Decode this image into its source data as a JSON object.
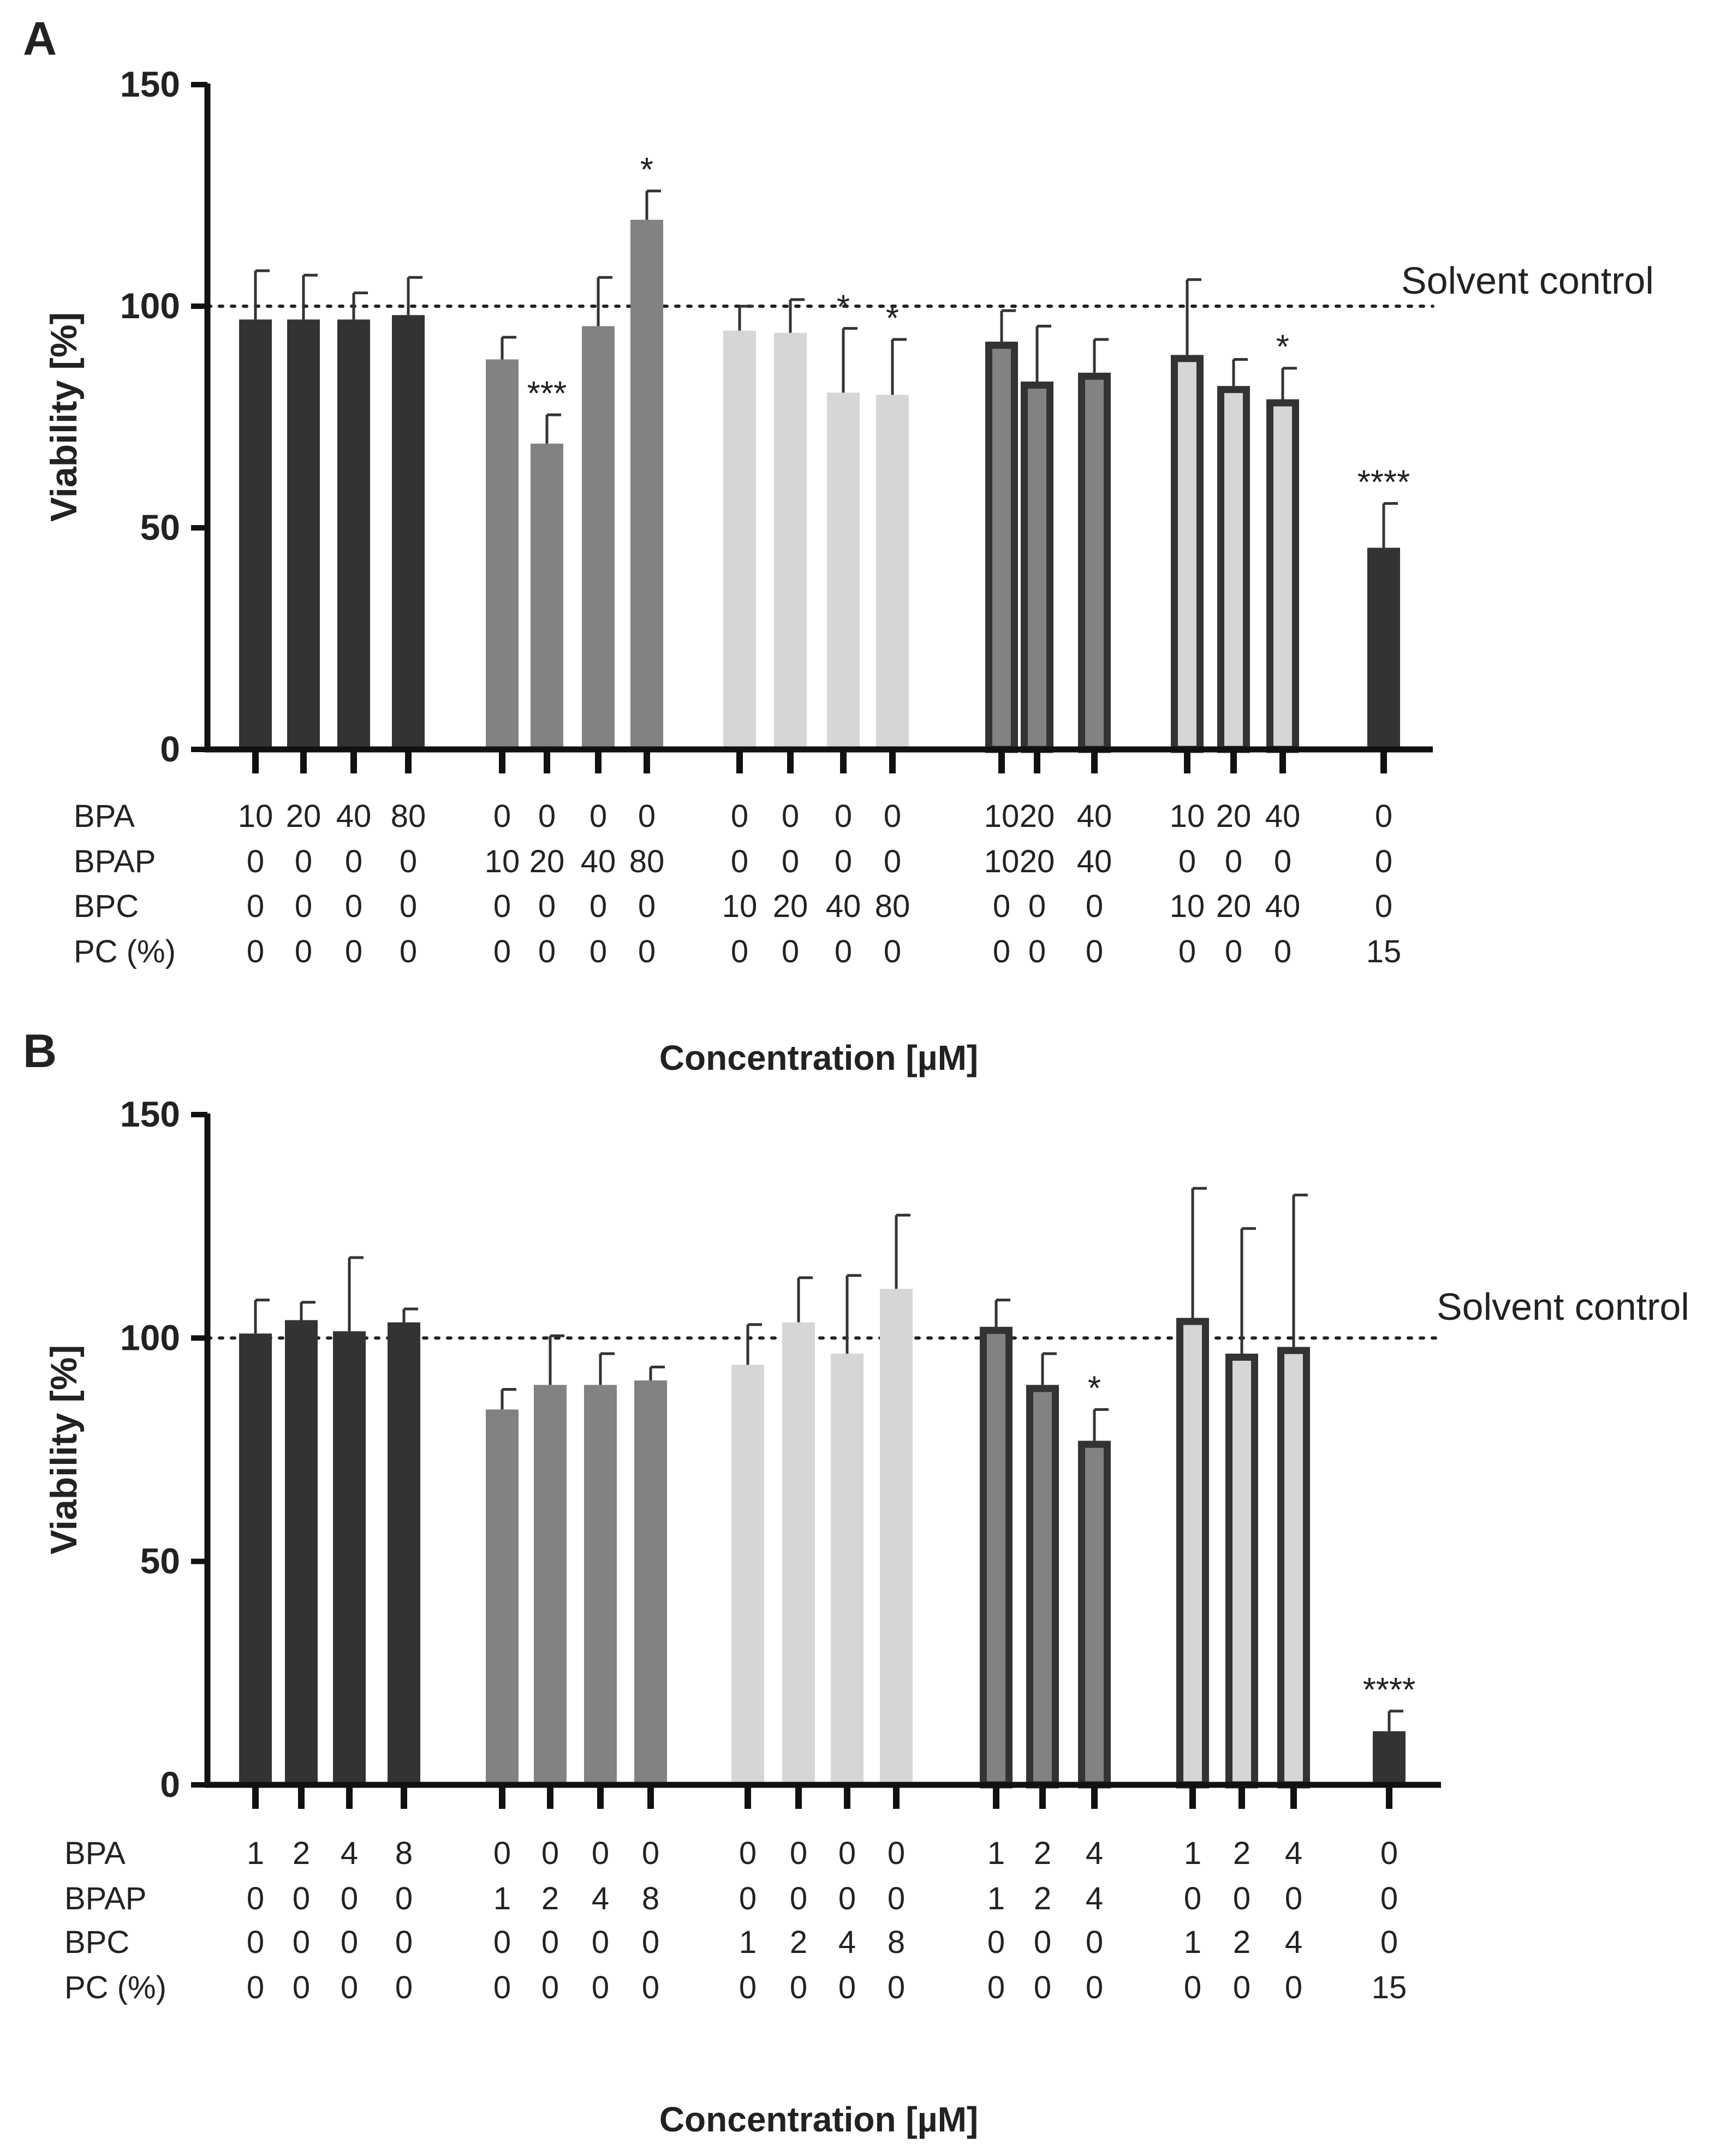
{
  "chart_data": [
    {
      "panel": "A",
      "type": "bar",
      "ylabel": "Viability [%]",
      "xlabel": "Concentration [µM]",
      "ylim": [
        0,
        150
      ],
      "yticks": [
        0,
        50,
        100,
        150
      ],
      "reference_line": {
        "value": 100,
        "label": "Solvent control",
        "style": "dotted"
      },
      "row_labels": [
        "BPA",
        "BPAP",
        "BPC",
        "PC (%)"
      ],
      "groups": [
        {
          "style": "dark",
          "bars": [
            {
              "value": 97,
              "error": 11,
              "sig": "",
              "conc": [
                "10",
                "0",
                "0",
                "0"
              ]
            },
            {
              "value": 97,
              "error": 10,
              "sig": "",
              "conc": [
                "20",
                "0",
                "0",
                "0"
              ]
            },
            {
              "value": 97,
              "error": 6,
              "sig": "",
              "conc": [
                "40",
                "0",
                "0",
                "0"
              ]
            },
            {
              "value": 98,
              "error": 8.5,
              "sig": "",
              "conc": [
                "80",
                "0",
                "0",
                "0"
              ]
            }
          ]
        },
        {
          "style": "mid",
          "bars": [
            {
              "value": 88,
              "error": 5,
              "sig": "",
              "conc": [
                "0",
                "10",
                "0",
                "0"
              ]
            },
            {
              "value": 69,
              "error": 6.5,
              "sig": "***",
              "conc": [
                "0",
                "20",
                "0",
                "0"
              ]
            },
            {
              "value": 95.5,
              "error": 11,
              "sig": "",
              "conc": [
                "0",
                "40",
                "0",
                "0"
              ]
            },
            {
              "value": 119.5,
              "error": 6.5,
              "sig": "*",
              "conc": [
                "0",
                "80",
                "0",
                "0"
              ]
            }
          ]
        },
        {
          "style": "light",
          "bars": [
            {
              "value": 94.5,
              "error": 5.5,
              "sig": "",
              "conc": [
                "0",
                "0",
                "10",
                "0"
              ]
            },
            {
              "value": 94,
              "error": 7.5,
              "sig": "",
              "conc": [
                "0",
                "0",
                "20",
                "0"
              ]
            },
            {
              "value": 80.5,
              "error": 14.5,
              "sig": "*",
              "conc": [
                "0",
                "0",
                "40",
                "0"
              ]
            },
            {
              "value": 80,
              "error": 12.5,
              "sig": "*",
              "conc": [
                "0",
                "0",
                "80",
                "0"
              ]
            }
          ]
        },
        {
          "style": "mid-outlined",
          "bars": [
            {
              "value": 92,
              "error": 7,
              "sig": "",
              "conc": [
                "10",
                "10",
                "0",
                "0"
              ]
            },
            {
              "value": 83,
              "error": 12.5,
              "sig": "",
              "conc": [
                "20",
                "20",
                "0",
                "0"
              ]
            },
            {
              "value": 85,
              "error": 7.5,
              "sig": "",
              "conc": [
                "40",
                "40",
                "0",
                "0"
              ]
            }
          ]
        },
        {
          "style": "light-outlined",
          "bars": [
            {
              "value": 89,
              "error": 17,
              "sig": "",
              "conc": [
                "10",
                "0",
                "10",
                "0"
              ]
            },
            {
              "value": 82,
              "error": 6,
              "sig": "",
              "conc": [
                "20",
                "0",
                "20",
                "0"
              ]
            },
            {
              "value": 79,
              "error": 7,
              "sig": "*",
              "conc": [
                "40",
                "0",
                "40",
                "0"
              ]
            }
          ]
        },
        {
          "style": "dark",
          "bars": [
            {
              "value": 45.5,
              "error": 10,
              "sig": "****",
              "conc": [
                "0",
                "0",
                "0",
                "15"
              ]
            }
          ]
        }
      ]
    },
    {
      "panel": "B",
      "type": "bar",
      "ylabel": "Viability [%]",
      "xlabel": "Concentration [µM]",
      "ylim": [
        0,
        150
      ],
      "yticks": [
        0,
        50,
        100,
        150
      ],
      "reference_line": {
        "value": 100,
        "label": "Solvent control",
        "style": "dotted"
      },
      "row_labels": [
        "BPA",
        "BPAP",
        "BPC",
        "PC (%)"
      ],
      "groups": [
        {
          "style": "dark",
          "bars": [
            {
              "value": 101,
              "error": 7.5,
              "sig": "",
              "conc": [
                "1",
                "0",
                "0",
                "0"
              ]
            },
            {
              "value": 104,
              "error": 4,
              "sig": "",
              "conc": [
                "2",
                "0",
                "0",
                "0"
              ]
            },
            {
              "value": 101.5,
              "error": 16.5,
              "sig": "",
              "conc": [
                "4",
                "0",
                "0",
                "0"
              ]
            },
            {
              "value": 103.5,
              "error": 3,
              "sig": "",
              "conc": [
                "8",
                "0",
                "0",
                "0"
              ]
            }
          ]
        },
        {
          "style": "mid",
          "bars": [
            {
              "value": 84,
              "error": 4.5,
              "sig": "",
              "conc": [
                "0",
                "1",
                "0",
                "0"
              ]
            },
            {
              "value": 89.5,
              "error": 11,
              "sig": "",
              "conc": [
                "0",
                "2",
                "0",
                "0"
              ]
            },
            {
              "value": 89.5,
              "error": 7,
              "sig": "",
              "conc": [
                "0",
                "4",
                "0",
                "0"
              ]
            },
            {
              "value": 90.5,
              "error": 3,
              "sig": "",
              "conc": [
                "0",
                "8",
                "0",
                "0"
              ]
            }
          ]
        },
        {
          "style": "light",
          "bars": [
            {
              "value": 94,
              "error": 9,
              "sig": "",
              "conc": [
                "0",
                "0",
                "1",
                "0"
              ]
            },
            {
              "value": 103.5,
              "error": 10,
              "sig": "",
              "conc": [
                "0",
                "0",
                "2",
                "0"
              ]
            },
            {
              "value": 96.5,
              "error": 17.5,
              "sig": "",
              "conc": [
                "0",
                "0",
                "4",
                "0"
              ]
            },
            {
              "value": 111,
              "error": 16.5,
              "sig": "",
              "conc": [
                "0",
                "0",
                "8",
                "0"
              ]
            }
          ]
        },
        {
          "style": "mid-outlined",
          "bars": [
            {
              "value": 102.5,
              "error": 6,
              "sig": "",
              "conc": [
                "1",
                "1",
                "0",
                "0"
              ]
            },
            {
              "value": 89.5,
              "error": 7,
              "sig": "",
              "conc": [
                "2",
                "2",
                "0",
                "0"
              ]
            },
            {
              "value": 77,
              "error": 7,
              "sig": "*",
              "conc": [
                "4",
                "4",
                "0",
                "0"
              ]
            }
          ]
        },
        {
          "style": "light-outlined",
          "bars": [
            {
              "value": 104.5,
              "error": 29,
              "sig": "",
              "conc": [
                "1",
                "0",
                "1",
                "0"
              ]
            },
            {
              "value": 96.5,
              "error": 28,
              "sig": "",
              "conc": [
                "2",
                "0",
                "2",
                "0"
              ]
            },
            {
              "value": 98,
              "error": 34,
              "sig": "",
              "conc": [
                "4",
                "0",
                "4",
                "0"
              ]
            }
          ]
        },
        {
          "style": "dark",
          "bars": [
            {
              "value": 12,
              "error": 4.5,
              "sig": "****",
              "conc": [
                "0",
                "0",
                "0",
                "15"
              ]
            }
          ]
        }
      ]
    }
  ],
  "colors": {
    "dark": "#333333",
    "mid": "#828282",
    "light": "#d6d6d6",
    "axis": "#111111"
  }
}
